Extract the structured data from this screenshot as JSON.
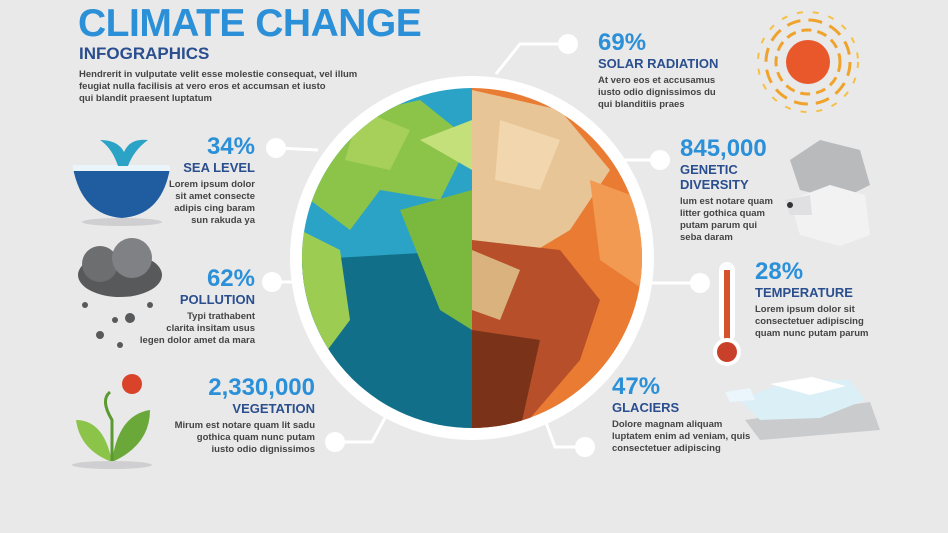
{
  "header": {
    "title": "CLIMATE CHANGE",
    "subtitle": "INFOGRAPHICS",
    "intro": [
      "Hendrerit in vulputate velit esse molestie consequat, vel illum",
      "feugiat nulla facilisis at vero eros et accumsan et iusto",
      "qui blandit praesent luptatum"
    ]
  },
  "items": [
    {
      "value": "34%",
      "label": [
        "SEA LEVEL"
      ],
      "text": [
        "Lorem ipsum dolor",
        "sit amet consecte",
        "adipis cing baram",
        "sun rakuda ya"
      ]
    },
    {
      "value": "62%",
      "label": [
        "POLLUTION"
      ],
      "text": [
        "Typi trathabent",
        "clarita insitam usus",
        "legen dolor amet da mara"
      ]
    },
    {
      "value": "2,330,000",
      "label": [
        "VEGETATION"
      ],
      "text": [
        "Mirum est notare quam lit sadu",
        "gothica quam nunc putam",
        "iusto odio dignissimos"
      ]
    },
    {
      "value": "69%",
      "label": [
        "SOLAR RADIATION"
      ],
      "text": [
        "At vero eos et accusamus",
        "iusto odio dignissimos du",
        "qui blanditiis praes"
      ]
    },
    {
      "value": "845,000",
      "label": [
        "GENETIC",
        "DIVERSITY"
      ],
      "text": [
        "lum est notare quam",
        "litter gothica quam",
        "putam parum qui",
        "seba  daram"
      ]
    },
    {
      "value": "28%",
      "label": [
        "TEMPERATURE"
      ],
      "text": [
        "Lorem ipsum dolor sit",
        "consectetuer adipiscing",
        "quam nunc putam parum"
      ]
    },
    {
      "value": "47%",
      "label": [
        "GLACIERS"
      ],
      "text": [
        "Dolore magnam aliquam",
        "luptatem enim ad veniam, quis",
        "consectetuer adipiscing"
      ]
    }
  ]
}
